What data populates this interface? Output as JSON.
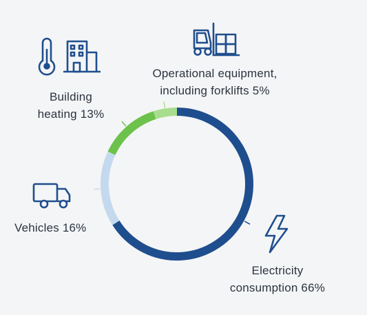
{
  "chart_data": {
    "type": "pie",
    "subtype": "donut",
    "title": "",
    "categories": [
      "Electricity consumption",
      "Vehicles",
      "Building heating",
      "Operational equipment, including forklifts"
    ],
    "values": [
      66,
      16,
      13,
      5
    ],
    "colors": [
      "#1f4e8e",
      "#c5d9ee",
      "#6cc24a",
      "#a8dd8e"
    ],
    "start": "top, clockwise",
    "labels": {
      "electricity": {
        "line1": "Electricity",
        "line2": "consumption 66%",
        "icon": "lightning-bolt-icon"
      },
      "vehicles": {
        "line1": "Vehicles 16%",
        "icon": "truck-icon"
      },
      "heating": {
        "line1": "Building",
        "line2": "heating 13%",
        "icon": "thermometer-building-icon"
      },
      "equipment": {
        "line1": "Operational equipment,",
        "line2": "including forklifts 5%",
        "icon": "forklift-icon"
      }
    }
  }
}
